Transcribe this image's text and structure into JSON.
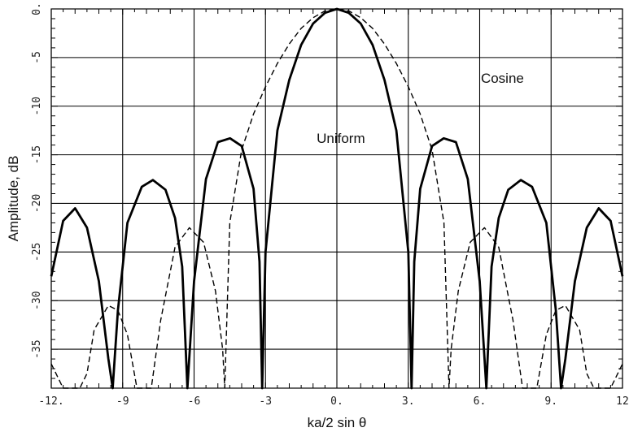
{
  "chart_data": {
    "type": "line",
    "title": "",
    "xlabel": "ka/2 sin θ",
    "ylabel": "Amplitude, dB",
    "xlim": [
      -12,
      12
    ],
    "ylim": [
      -39,
      0
    ],
    "grid": true,
    "x_ticks": [
      -12,
      -9,
      -6,
      -3,
      0,
      3,
      6,
      9,
      12
    ],
    "x_tick_labels": [
      "-12.",
      "-9",
      "-6",
      "-3",
      "0.",
      "3.",
      "6.",
      "9.",
      "12"
    ],
    "y_ticks": [
      0,
      -5,
      -10,
      -15,
      -20,
      -25,
      -30,
      -35
    ],
    "y_tick_labels": [
      "0.",
      "-5",
      "-10",
      "-15",
      "-20",
      "-25",
      "-30",
      "-35"
    ],
    "series": [
      {
        "name": "Uniform",
        "style": "solid",
        "color": "#000000",
        "points": [
          [
            -12,
            -27.5
          ],
          [
            -11.5,
            -21.8
          ],
          [
            -11.0,
            -20.5
          ],
          [
            -10.5,
            -22.5
          ],
          [
            -10.0,
            -28.0
          ],
          [
            -9.6,
            -36.0
          ],
          [
            -9.42,
            -39.0
          ],
          [
            -9.2,
            -31.0
          ],
          [
            -8.8,
            -22.0
          ],
          [
            -8.2,
            -18.3
          ],
          [
            -7.73,
            -17.6
          ],
          [
            -7.2,
            -18.6
          ],
          [
            -6.8,
            -21.5
          ],
          [
            -6.5,
            -26.5
          ],
          [
            -6.28,
            -39.0
          ],
          [
            -6.0,
            -28.0
          ],
          [
            -5.5,
            -17.5
          ],
          [
            -5.0,
            -13.7
          ],
          [
            -4.49,
            -13.3
          ],
          [
            -4.0,
            -14.1
          ],
          [
            -3.5,
            -18.5
          ],
          [
            -3.25,
            -26.0
          ],
          [
            -3.14,
            -39.0
          ],
          [
            -3.0,
            -25.0
          ],
          [
            -2.5,
            -12.5
          ],
          [
            -2.0,
            -7.3
          ],
          [
            -1.5,
            -3.7
          ],
          [
            -1.0,
            -1.5
          ],
          [
            -0.5,
            -0.4
          ],
          [
            0,
            0
          ],
          [
            0.5,
            -0.4
          ],
          [
            1.0,
            -1.5
          ],
          [
            1.5,
            -3.7
          ],
          [
            2.0,
            -7.3
          ],
          [
            2.5,
            -12.5
          ],
          [
            3.0,
            -25.0
          ],
          [
            3.14,
            -39.0
          ],
          [
            3.25,
            -26.0
          ],
          [
            3.5,
            -18.5
          ],
          [
            4.0,
            -14.1
          ],
          [
            4.49,
            -13.3
          ],
          [
            5.0,
            -13.7
          ],
          [
            5.5,
            -17.5
          ],
          [
            6.0,
            -28.0
          ],
          [
            6.28,
            -39.0
          ],
          [
            6.5,
            -26.5
          ],
          [
            6.8,
            -21.5
          ],
          [
            7.2,
            -18.6
          ],
          [
            7.73,
            -17.6
          ],
          [
            8.2,
            -18.3
          ],
          [
            8.8,
            -22.0
          ],
          [
            9.2,
            -31.0
          ],
          [
            9.42,
            -39.0
          ],
          [
            9.6,
            -36.0
          ],
          [
            10.0,
            -28.0
          ],
          [
            10.5,
            -22.5
          ],
          [
            11.0,
            -20.5
          ],
          [
            11.5,
            -21.8
          ],
          [
            12,
            -27.5
          ]
        ]
      },
      {
        "name": "Cosine",
        "style": "dashed",
        "color": "#000000",
        "points": [
          [
            -12,
            -36.5
          ],
          [
            -11.5,
            -39.0
          ],
          [
            -10.8,
            -39.0
          ],
          [
            -10.5,
            -37.5
          ],
          [
            -10.2,
            -33.0
          ],
          [
            -9.6,
            -30.5
          ],
          [
            -9.2,
            -31.0
          ],
          [
            -8.8,
            -33.5
          ],
          [
            -8.4,
            -39.0
          ],
          [
            -7.8,
            -39.0
          ],
          [
            -7.4,
            -32.0
          ],
          [
            -6.8,
            -24.5
          ],
          [
            -6.2,
            -22.5
          ],
          [
            -5.6,
            -24.0
          ],
          [
            -5.1,
            -29.0
          ],
          [
            -4.8,
            -35.0
          ],
          [
            -4.71,
            -39.0
          ],
          [
            -4.5,
            -22.0
          ],
          [
            -4.0,
            -14.5
          ],
          [
            -3.5,
            -10.8
          ],
          [
            -3.0,
            -8.0
          ],
          [
            -2.5,
            -5.6
          ],
          [
            -2.0,
            -3.6
          ],
          [
            -1.5,
            -2.0
          ],
          [
            -1.0,
            -0.9
          ],
          [
            -0.5,
            -0.2
          ],
          [
            0,
            0
          ],
          [
            0.5,
            -0.2
          ],
          [
            1.0,
            -0.9
          ],
          [
            1.5,
            -2.0
          ],
          [
            2.0,
            -3.6
          ],
          [
            2.5,
            -5.6
          ],
          [
            3.0,
            -8.0
          ],
          [
            3.5,
            -10.8
          ],
          [
            4.0,
            -14.5
          ],
          [
            4.5,
            -22.0
          ],
          [
            4.71,
            -39.0
          ],
          [
            4.8,
            -35.0
          ],
          [
            5.1,
            -29.0
          ],
          [
            5.6,
            -24.0
          ],
          [
            6.2,
            -22.5
          ],
          [
            6.8,
            -24.5
          ],
          [
            7.4,
            -32.0
          ],
          [
            7.8,
            -39.0
          ],
          [
            8.4,
            -39.0
          ],
          [
            8.8,
            -33.5
          ],
          [
            9.2,
            -31.0
          ],
          [
            9.6,
            -30.5
          ],
          [
            10.2,
            -33.0
          ],
          [
            10.5,
            -37.5
          ],
          [
            10.8,
            -39.0
          ],
          [
            11.5,
            -39.0
          ],
          [
            12,
            -36.5
          ]
        ]
      }
    ],
    "annotations": [
      {
        "text": "Cosine",
        "x": 6.05,
        "y": -7.6
      },
      {
        "text": "Uniform",
        "x": -0.85,
        "y": -13.8
      }
    ]
  }
}
